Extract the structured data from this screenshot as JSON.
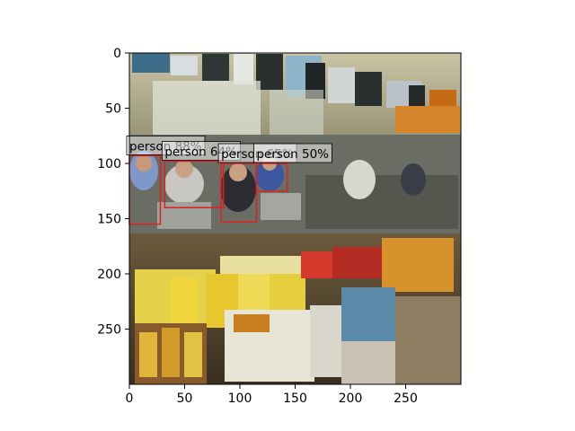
{
  "image_scene": {
    "description_hidden": true,
    "width_units": 300,
    "height_units": 300
  },
  "axes": {
    "x_ticks": [
      "0",
      "50",
      "100",
      "150",
      "200",
      "250"
    ],
    "x_tick_values": [
      0,
      50,
      100,
      150,
      200,
      250
    ],
    "y_ticks": [
      "0",
      "50",
      "100",
      "150",
      "200",
      "250"
    ],
    "y_tick_values": [
      0,
      50,
      100,
      150,
      200,
      250
    ],
    "xlim": [
      0,
      300
    ],
    "ylim": [
      300,
      0
    ]
  },
  "detections": [
    {
      "label": "person 88%",
      "x0": 0,
      "y0": 93,
      "x1": 28,
      "y1": 155,
      "color": "#e0201c"
    },
    {
      "label": "person 64%",
      "x0": 32,
      "y0": 98,
      "x1": 85,
      "y1": 140,
      "color": "#e0201c"
    },
    {
      "label": "person 65%",
      "x0": 83,
      "y0": 100,
      "x1": 115,
      "y1": 153,
      "color": "#e0201c"
    },
    {
      "label": "person 50%",
      "x0": 115,
      "y0": 100,
      "x1": 143,
      "y1": 125,
      "color": "#e0201c"
    }
  ],
  "chart_data": {
    "type": "image-with-detections",
    "xlim": [
      0,
      300
    ],
    "ylim": [
      300,
      0
    ],
    "series": [
      {
        "label": "person 88%",
        "box": [
          0,
          93,
          28,
          155
        ]
      },
      {
        "label": "person 64%",
        "box": [
          32,
          98,
          85,
          140
        ]
      },
      {
        "label": "person 65%",
        "box": [
          83,
          100,
          115,
          153
        ]
      },
      {
        "label": "person 50%",
        "box": [
          115,
          100,
          143,
          125
        ]
      }
    ]
  }
}
